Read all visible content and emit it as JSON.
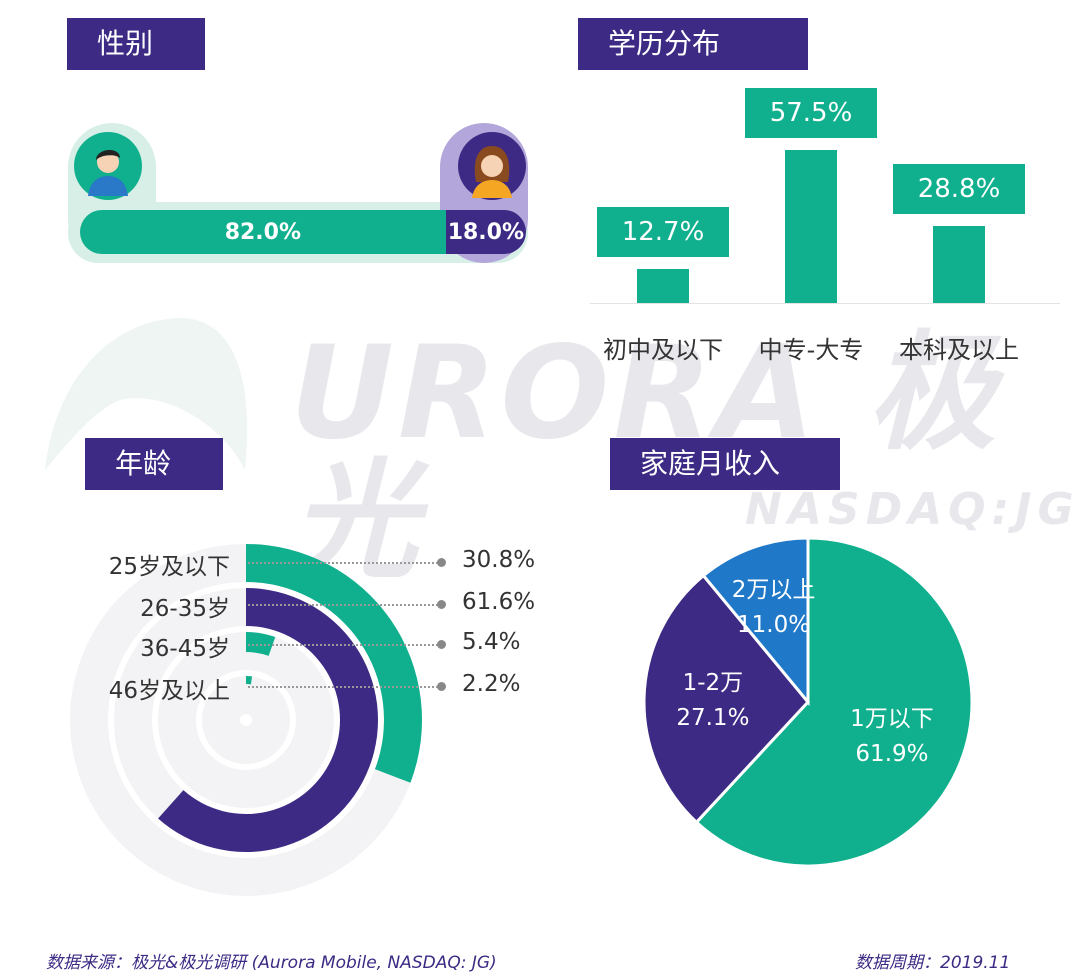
{
  "watermark": {
    "brand": "URORA 极光",
    "sub": "NASDAQ:JG"
  },
  "sections": {
    "gender": "性别",
    "education": "学历分布",
    "age": "年龄",
    "income": "家庭月收入"
  },
  "colors": {
    "green": "#10b08e",
    "purple": "#3d2a84",
    "blue": "#1f78c8",
    "light_green": "#d7efe6",
    "light_purple": "#b3a6da"
  },
  "chart_data": [
    {
      "type": "bar",
      "title": "性别",
      "categories": [
        "male-icon",
        "female-icon"
      ],
      "values": [
        82.0,
        18.0
      ],
      "value_labels": [
        "82.0%",
        "18.0%"
      ]
    },
    {
      "type": "bar",
      "title": "学历分布",
      "categories": [
        "初中及以下",
        "中专-大专",
        "本科及以上"
      ],
      "values": [
        12.7,
        57.5,
        28.8
      ],
      "value_labels": [
        "12.7%",
        "57.5%",
        "28.8%"
      ],
      "ylim": [
        0,
        60
      ]
    },
    {
      "type": "pie",
      "title": "年龄",
      "categories": [
        "25岁及以下",
        "26-35岁",
        "36-45岁",
        "46岁及以上"
      ],
      "values": [
        30.8,
        61.6,
        5.4,
        2.2
      ],
      "value_labels": [
        "30.8%",
        "61.6%",
        "5.4%",
        "2.2%"
      ]
    },
    {
      "type": "pie",
      "title": "家庭月收入",
      "categories": [
        "1万以下",
        "1-2万",
        "2万以上"
      ],
      "values": [
        61.9,
        27.1,
        11.0
      ],
      "value_labels": [
        "61.9%",
        "27.1%",
        "11.0%"
      ]
    }
  ],
  "footer": {
    "source": "数据来源：极光&极光调研 (Aurora Mobile, NASDAQ: JG)",
    "period": "数据周期：2019.11"
  }
}
